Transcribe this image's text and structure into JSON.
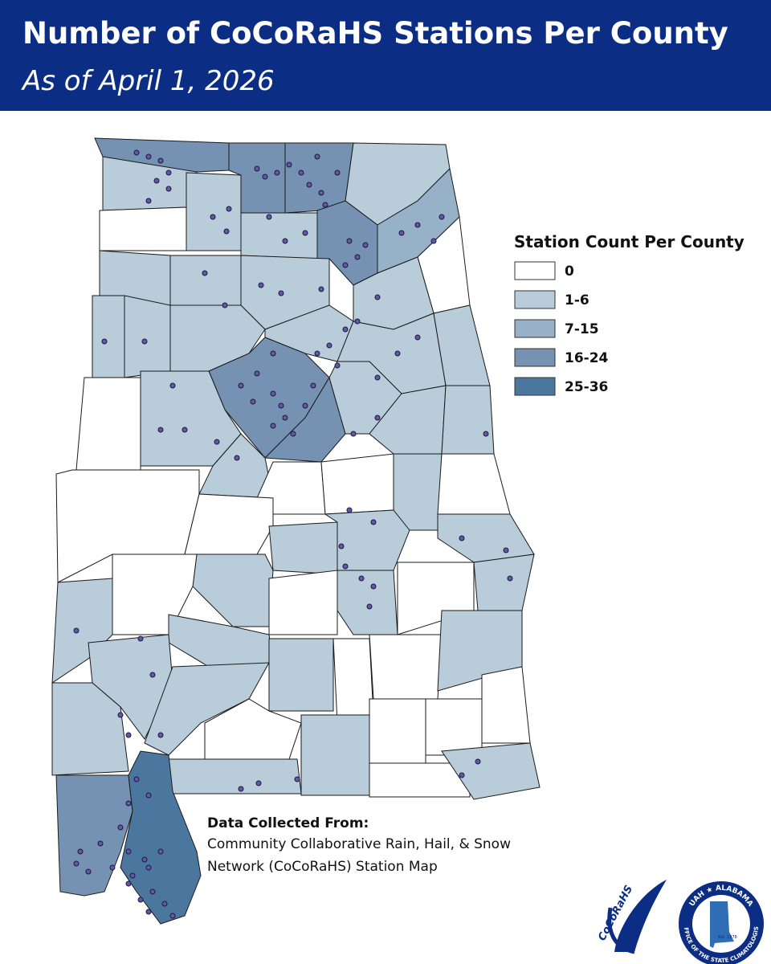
{
  "header": {
    "title": "Number of CoCoRaHS Stations Per County",
    "subtitle": "As of April 1, 2026"
  },
  "legend": {
    "title": "Station Count Per County",
    "items": [
      {
        "label": "0",
        "color": "#ffffff"
      },
      {
        "label": "1-6",
        "color": "#b8ccda"
      },
      {
        "label": "7-15",
        "color": "#97b1c9"
      },
      {
        "label": "16-24",
        "color": "#7592b2"
      },
      {
        "label": "25-36",
        "color": "#4b779e"
      }
    ]
  },
  "source": {
    "heading": "Data Collected From:",
    "lines": [
      "Community Collaborative Rain, Hail, & Snow",
      "Network (CoCoRaHS) Station Map"
    ]
  },
  "logos": {
    "cocorahs": "CoCoRaHS",
    "seal_top": "UAH ★ ALABAMA",
    "seal_bottom": "OFFICE OF THE STATE CLIMATOLOGIST",
    "seal_est": "Est. 1978"
  }
}
